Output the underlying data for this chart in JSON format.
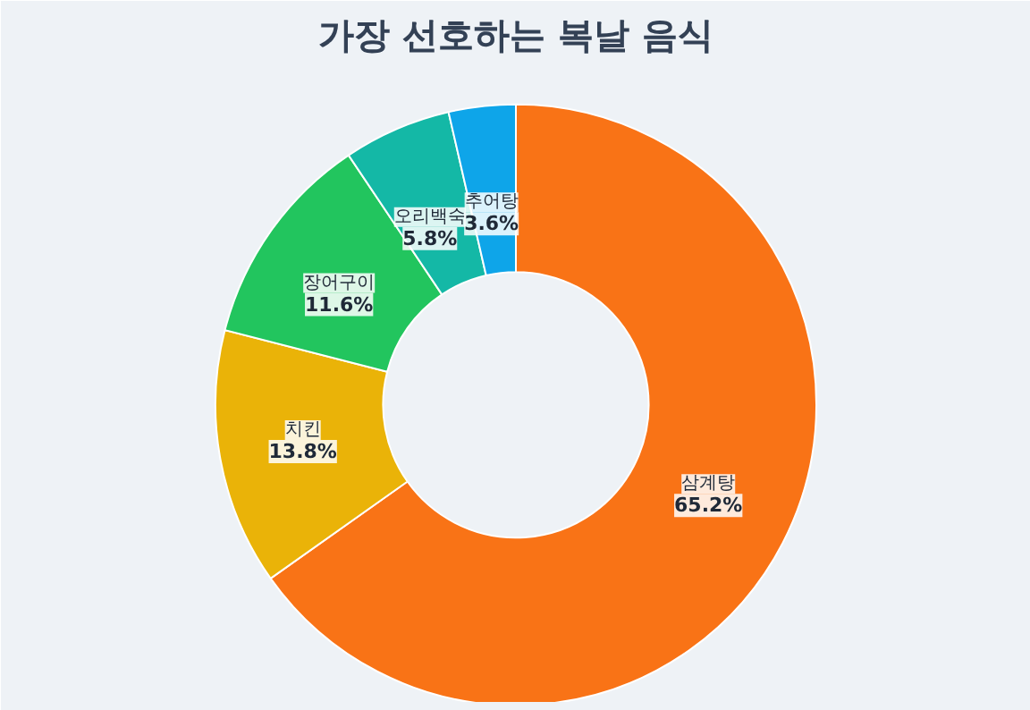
{
  "chart_data": {
    "type": "donut",
    "title": "가장 선호하는 복날 음식",
    "categories": [
      "삼계탕",
      "치킨",
      "장어구이",
      "오리백숙",
      "추어탕"
    ],
    "values": [
      65.2,
      13.8,
      11.6,
      5.8,
      3.6
    ],
    "value_labels": [
      "65.2%",
      "13.8%",
      "11.6%",
      "5.8%",
      "3.6%"
    ],
    "colors": [
      "#f97316",
      "#eab308",
      "#22c55e",
      "#14b8a6",
      "#0ea5e9"
    ]
  }
}
